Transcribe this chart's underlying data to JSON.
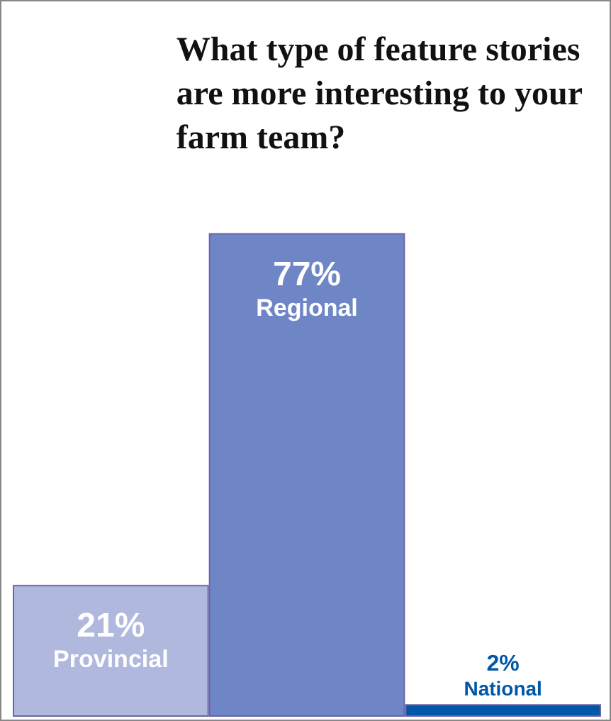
{
  "chart_data": {
    "type": "bar",
    "title": "What type of feature stories\nare more interesting to your\nfarm team?",
    "categories": [
      "Provincial",
      "Regional",
      "National"
    ],
    "values": [
      21,
      77,
      2
    ],
    "colors": [
      "#b0b8de",
      "#6f86c6",
      "#0057a8"
    ],
    "value_labels": [
      "21%",
      "77%",
      "2%"
    ],
    "tick_labels": false
  }
}
